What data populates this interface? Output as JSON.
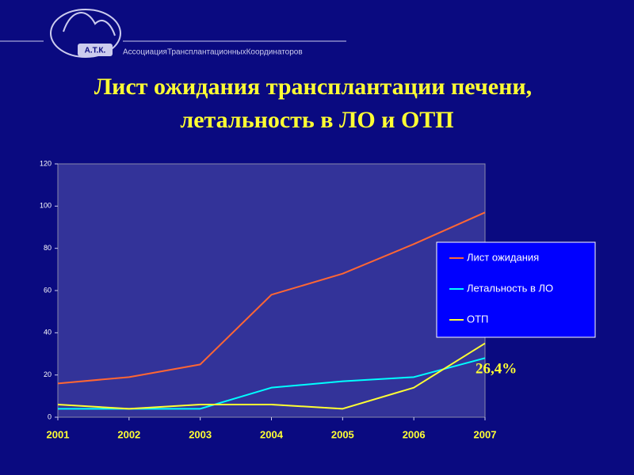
{
  "header": {
    "logo_mark": "А.Т.К.",
    "logo_text": "АссоциацияТрансплантационныхКоординаторов"
  },
  "chart_data": {
    "type": "line",
    "title": [
      "Лист ожидания трансплантации печени,",
      "летальность в ЛО и ОТП"
    ],
    "categories": [
      "2001",
      "2002",
      "2003",
      "2004",
      "2005",
      "2006",
      "2007"
    ],
    "series": [
      {
        "name": "Лист ожидания",
        "color": "#ff6633",
        "values": [
          16,
          19,
          25,
          58,
          68,
          82,
          97
        ]
      },
      {
        "name": "Летальность в ЛО",
        "color": "#00ffff",
        "values": [
          4,
          4,
          4,
          14,
          17,
          19,
          28
        ]
      },
      {
        "name": "ОТП",
        "color": "#ffff33",
        "values": [
          6,
          4,
          6,
          6,
          4,
          14,
          35
        ]
      }
    ],
    "ylim": [
      0,
      120
    ],
    "yticks": [
      0,
      20,
      40,
      60,
      80,
      100,
      120
    ],
    "grid": false,
    "legend": "right",
    "annotation": "26,4%"
  }
}
